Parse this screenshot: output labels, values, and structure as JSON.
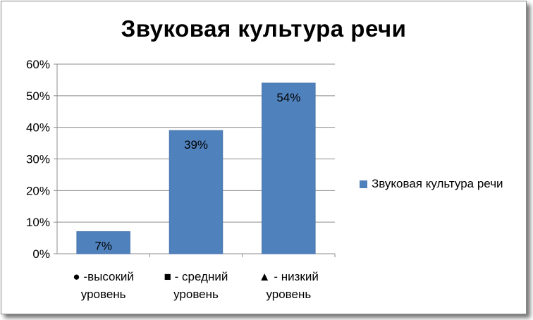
{
  "chart_data": {
    "type": "bar",
    "title": "Звуковая культура речи",
    "categories": [
      [
        "● -высокий",
        "уровень"
      ],
      [
        "■ - средний",
        "уровень"
      ],
      [
        "▲ - низкий",
        "уровень"
      ]
    ],
    "series": [
      {
        "name": "Звуковая культура речи",
        "values": [
          7,
          39,
          54
        ],
        "color": "#4f81bd"
      }
    ],
    "data_labels": [
      "7%",
      "39%",
      "54%"
    ],
    "yticks": [
      "0%",
      "10%",
      "20%",
      "30%",
      "40%",
      "50%",
      "60%"
    ],
    "ylim": [
      0,
      60
    ],
    "ytick_step": 10,
    "legend_position": "right",
    "gridlines": true
  }
}
